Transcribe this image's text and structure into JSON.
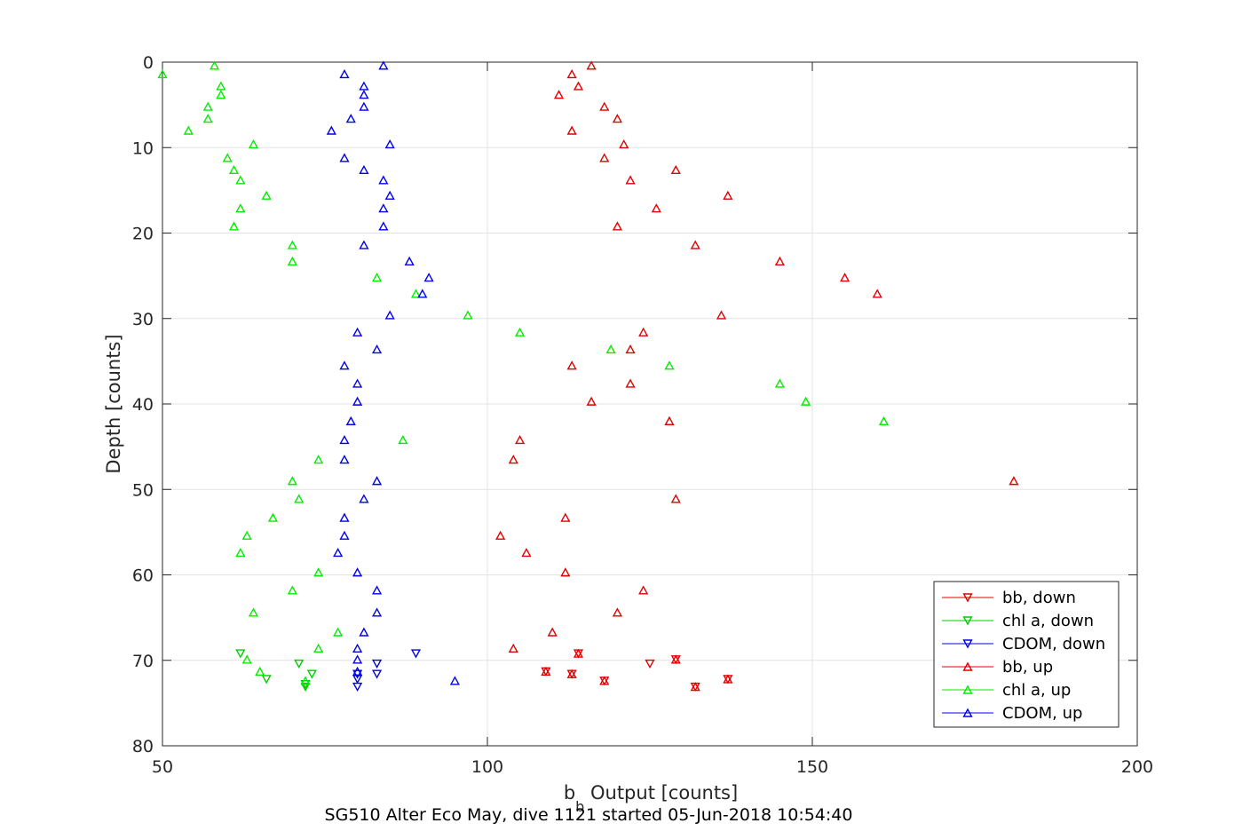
{
  "chart_data": {
    "type": "scatter",
    "title": "",
    "xlabel_main": "b",
    "xlabel_sub": "b",
    "xlabel_rest": " Output [counts]",
    "ylabel": "Depth [counts]",
    "caption": "SG510 Alter Eco May, dive 1121 started 05-Jun-2018 10:54:40",
    "xlim": [
      50,
      200
    ],
    "ylim": [
      0,
      80
    ],
    "y_reversed": true,
    "xticks": [
      50,
      100,
      150,
      200
    ],
    "yticks": [
      0,
      10,
      20,
      30,
      40,
      50,
      60,
      70,
      80
    ],
    "grid": true,
    "legend_position": "bottom-right",
    "series": [
      {
        "name": "bb, down",
        "color": "#e00000",
        "marker": "triangle-down",
        "points": [
          [
            114,
            69.2
          ],
          [
            125,
            70.4
          ],
          [
            129,
            69.9
          ],
          [
            113,
            71.6
          ],
          [
            118,
            72.4
          ],
          [
            132,
            73.1
          ],
          [
            137,
            72.2
          ],
          [
            109,
            71.3
          ]
        ]
      },
      {
        "name": "chl a, down",
        "color": "#00cc00",
        "marker": "triangle-down",
        "points": [
          [
            62,
            69.2
          ],
          [
            71,
            70.4
          ],
          [
            73,
            71.6
          ],
          [
            66,
            72.2
          ],
          [
            72,
            72.8
          ],
          [
            72,
            73.1
          ]
        ]
      },
      {
        "name": "CDOM, down",
        "color": "#0000dd",
        "marker": "triangle-down",
        "points": [
          [
            89,
            69.2
          ],
          [
            83,
            70.4
          ],
          [
            80,
            71.6
          ],
          [
            83,
            71.6
          ],
          [
            80,
            72.2
          ],
          [
            80,
            73.1
          ]
        ]
      },
      {
        "name": "bb, up",
        "color": "#e00000",
        "marker": "triangle-up",
        "points": [
          [
            116,
            0.4
          ],
          [
            113,
            1.4
          ],
          [
            114,
            2.8
          ],
          [
            111,
            3.8
          ],
          [
            118,
            5.2
          ],
          [
            120,
            6.6
          ],
          [
            113,
            8.0
          ],
          [
            121,
            9.6
          ],
          [
            118,
            11.2
          ],
          [
            129,
            12.6
          ],
          [
            122,
            13.8
          ],
          [
            137,
            15.6
          ],
          [
            126,
            17.1
          ],
          [
            120,
            19.2
          ],
          [
            132,
            21.4
          ],
          [
            145,
            23.3
          ],
          [
            155,
            25.2
          ],
          [
            160,
            27.1
          ],
          [
            136,
            29.6
          ],
          [
            124,
            31.6
          ],
          [
            122,
            33.6
          ],
          [
            113,
            35.5
          ],
          [
            122,
            37.6
          ],
          [
            116,
            39.7
          ],
          [
            128,
            42.0
          ],
          [
            105,
            44.2
          ],
          [
            104,
            46.5
          ],
          [
            181,
            49.0
          ],
          [
            129,
            51.1
          ],
          [
            112,
            53.3
          ],
          [
            102,
            55.4
          ],
          [
            106,
            57.4
          ],
          [
            112,
            59.7
          ],
          [
            124,
            61.8
          ],
          [
            120,
            64.4
          ],
          [
            110,
            66.7
          ],
          [
            104,
            68.6
          ],
          [
            114,
            69.2
          ],
          [
            129,
            69.9
          ],
          [
            109,
            71.3
          ],
          [
            113,
            71.6
          ],
          [
            118,
            72.4
          ],
          [
            137,
            72.2
          ],
          [
            132,
            73.1
          ]
        ]
      },
      {
        "name": "chl a, up",
        "color": "#00ee00",
        "marker": "triangle-up",
        "points": [
          [
            58,
            0.4
          ],
          [
            50,
            1.4
          ],
          [
            59,
            2.8
          ],
          [
            59,
            3.8
          ],
          [
            57,
            5.2
          ],
          [
            57,
            6.6
          ],
          [
            54,
            8.0
          ],
          [
            64,
            9.6
          ],
          [
            60,
            11.2
          ],
          [
            61,
            12.6
          ],
          [
            62,
            13.8
          ],
          [
            66,
            15.6
          ],
          [
            62,
            17.1
          ],
          [
            61,
            19.2
          ],
          [
            70,
            21.4
          ],
          [
            70,
            23.3
          ],
          [
            83,
            25.2
          ],
          [
            89,
            27.1
          ],
          [
            97,
            29.6
          ],
          [
            105,
            31.6
          ],
          [
            119,
            33.6
          ],
          [
            128,
            35.5
          ],
          [
            145,
            37.6
          ],
          [
            149,
            39.7
          ],
          [
            161,
            42.0
          ],
          [
            87,
            44.2
          ],
          [
            74,
            46.5
          ],
          [
            70,
            49.0
          ],
          [
            71,
            51.1
          ],
          [
            67,
            53.3
          ],
          [
            63,
            55.4
          ],
          [
            62,
            57.4
          ],
          [
            74,
            59.7
          ],
          [
            70,
            61.8
          ],
          [
            64,
            64.4
          ],
          [
            77,
            66.7
          ],
          [
            74,
            68.6
          ],
          [
            63,
            69.9
          ],
          [
            65,
            71.3
          ],
          [
            72,
            72.4
          ]
        ]
      },
      {
        "name": "CDOM, up",
        "color": "#0000ee",
        "marker": "triangle-up",
        "points": [
          [
            84,
            0.4
          ],
          [
            78,
            1.4
          ],
          [
            81,
            2.8
          ],
          [
            81,
            3.8
          ],
          [
            81,
            5.2
          ],
          [
            79,
            6.6
          ],
          [
            76,
            8.0
          ],
          [
            85,
            9.6
          ],
          [
            78,
            11.2
          ],
          [
            81,
            12.6
          ],
          [
            84,
            13.8
          ],
          [
            85,
            15.6
          ],
          [
            84,
            17.1
          ],
          [
            84,
            19.2
          ],
          [
            81,
            21.4
          ],
          [
            88,
            23.3
          ],
          [
            91,
            25.2
          ],
          [
            90,
            27.1
          ],
          [
            85,
            29.6
          ],
          [
            80,
            31.6
          ],
          [
            83,
            33.6
          ],
          [
            78,
            35.5
          ],
          [
            80,
            37.6
          ],
          [
            80,
            39.7
          ],
          [
            79,
            42.0
          ],
          [
            78,
            44.2
          ],
          [
            78,
            46.5
          ],
          [
            83,
            49.0
          ],
          [
            81,
            51.1
          ],
          [
            78,
            53.3
          ],
          [
            78,
            55.4
          ],
          [
            77,
            57.4
          ],
          [
            80,
            59.7
          ],
          [
            83,
            61.8
          ],
          [
            83,
            64.4
          ],
          [
            81,
            66.7
          ],
          [
            80,
            68.6
          ],
          [
            80,
            69.9
          ],
          [
            80,
            71.3
          ],
          [
            95,
            72.4
          ]
        ]
      }
    ]
  }
}
